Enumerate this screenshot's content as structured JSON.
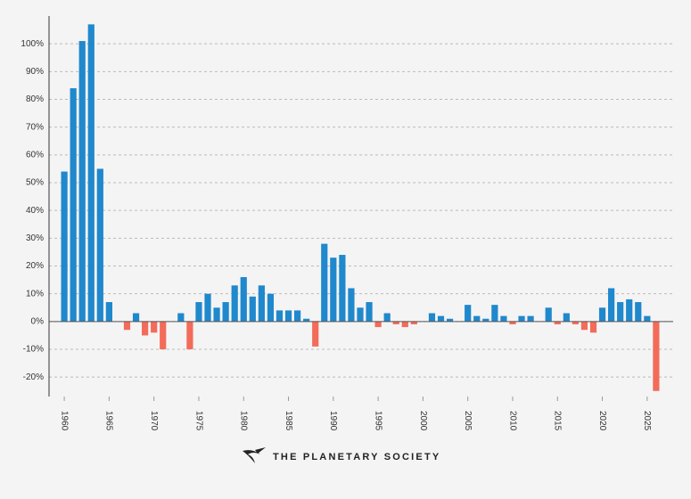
{
  "chart_data": {
    "type": "bar",
    "x": [
      1960,
      1961,
      1962,
      1963,
      1964,
      1965,
      1966,
      1967,
      1968,
      1969,
      1970,
      1971,
      1972,
      1973,
      1974,
      1975,
      1976,
      1977,
      1978,
      1979,
      1980,
      1981,
      1982,
      1983,
      1984,
      1985,
      1986,
      1987,
      1988,
      1989,
      1990,
      1991,
      1992,
      1993,
      1994,
      1995,
      1996,
      1997,
      1998,
      1999,
      2000,
      2001,
      2002,
      2003,
      2004,
      2005,
      2006,
      2007,
      2008,
      2009,
      2010,
      2011,
      2012,
      2013,
      2014,
      2015,
      2016,
      2017,
      2018,
      2019,
      2020,
      2021,
      2022,
      2023,
      2024,
      2025,
      2026
    ],
    "values": [
      54,
      84,
      101,
      107,
      55,
      7,
      0,
      -3,
      3,
      -5,
      -4,
      -10,
      0,
      3,
      -10,
      7,
      10,
      5,
      7,
      13,
      16,
      9,
      13,
      10,
      4,
      4,
      4,
      1,
      -9,
      28,
      23,
      24,
      12,
      5,
      7,
      -2,
      3,
      -1,
      -2,
      -1,
      0,
      3,
      2,
      1,
      0,
      6,
      2,
      1,
      6,
      2,
      -1,
      2,
      2,
      0,
      5,
      -1,
      3,
      -1,
      -3,
      -4,
      5,
      12,
      7,
      8,
      7,
      2,
      -25
    ],
    "positive_color": "#2088cc",
    "negative_color": "#f36b5a",
    "xlim": [
      1958.3,
      2027.9
    ],
    "xticks": [
      1960,
      1965,
      1970,
      1975,
      1980,
      1985,
      1990,
      1995,
      2000,
      2005,
      2010,
      2015,
      2020,
      2025
    ],
    "ylim": [
      -27,
      110
    ],
    "yticks": [
      {
        "value": -20,
        "label": "-20%"
      },
      {
        "value": -10,
        "label": "-10%"
      },
      {
        "value": 0,
        "label": "0%"
      },
      {
        "value": 10,
        "label": "10%"
      },
      {
        "value": 20,
        "label": "20%"
      },
      {
        "value": 30,
        "label": "30%"
      },
      {
        "value": 40,
        "label": "40%"
      },
      {
        "value": 50,
        "label": "50%"
      },
      {
        "value": 60,
        "label": "60%"
      },
      {
        "value": 70,
        "label": "70%"
      },
      {
        "value": 80,
        "label": "80%"
      },
      {
        "value": 90,
        "label": "90%"
      },
      {
        "value": 100,
        "label": "100%"
      }
    ],
    "grid": true,
    "footer_logo": "THE PLANETARY SOCIETY"
  }
}
